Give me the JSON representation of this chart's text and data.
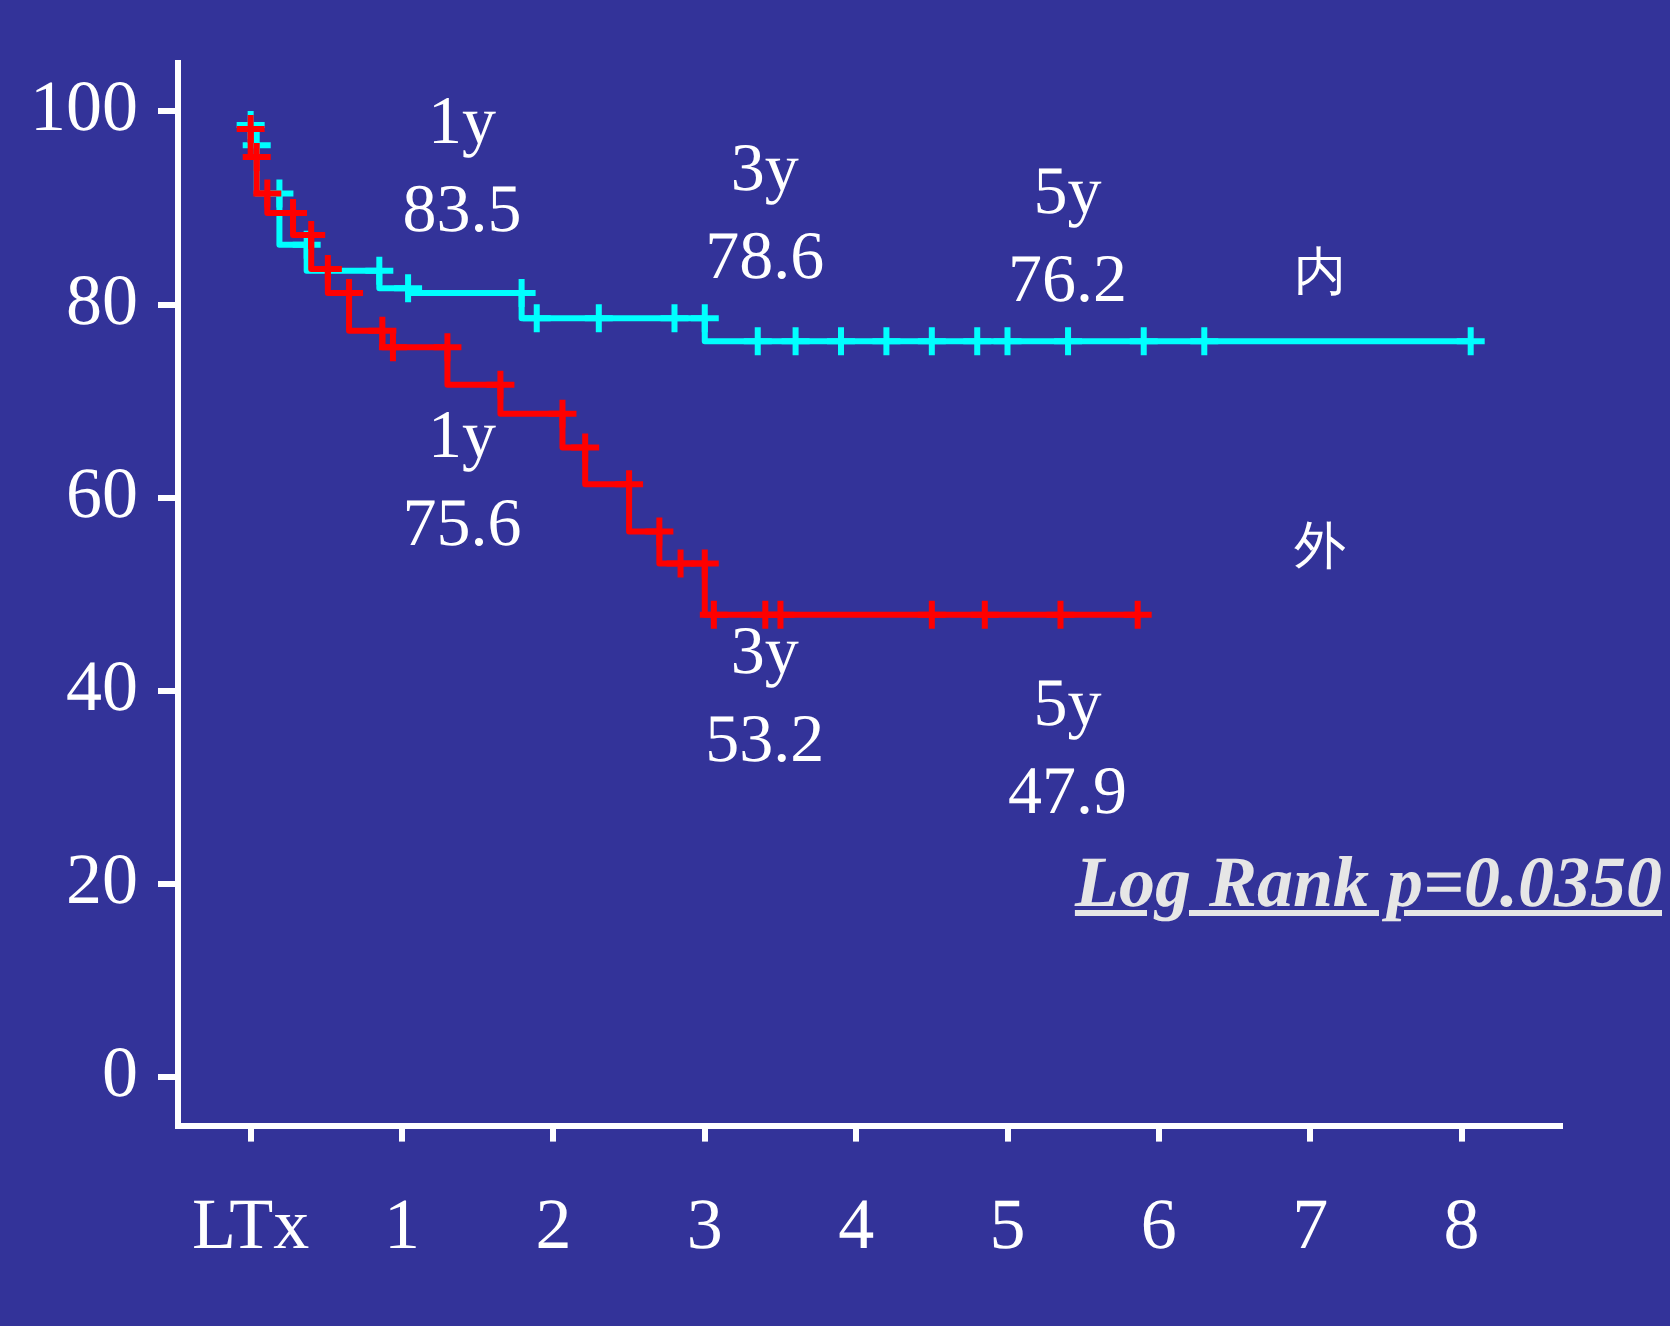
{
  "chart_data": {
    "type": "step",
    "series": [
      {
        "name": "内",
        "color": "#00ffff",
        "x": [
          0,
          0.04,
          0.19,
          0.37,
          0.85,
          1.04,
          1.79,
          1.89,
          2.3,
          2.8,
          3,
          3.35,
          3.6,
          3.9,
          4.2,
          4.5,
          4.8,
          5.0,
          5.4,
          5.9,
          6.3,
          8.06
        ],
        "values": [
          98.6,
          96.5,
          91.5,
          86.2,
          83.5,
          81.7,
          81.2,
          78.6,
          78.6,
          78.6,
          78.6,
          76.2,
          76.2,
          76.2,
          76.2,
          76.2,
          76.2,
          76.2,
          76.2,
          76.2,
          76.2,
          76.2
        ]
      },
      {
        "name": "外",
        "color": "#ff0000",
        "x": [
          0,
          0.04,
          0.11,
          0.28,
          0.4,
          0.51,
          0.65,
          0.87,
          0.94,
          1.3,
          1.65,
          2.06,
          2.21,
          2.5,
          2.7,
          2.84,
          3,
          3.06,
          3.4,
          3.5,
          4.5,
          4.85,
          5.35,
          5.86
        ],
        "values": [
          98.2,
          95.3,
          91.5,
          89.5,
          87.2,
          83.7,
          81.2,
          77.3,
          75.6,
          75.6,
          71.7,
          68.7,
          65.2,
          61.4,
          56.5,
          53.2,
          53.2,
          47.9,
          47.9,
          47.9,
          47.9,
          47.9,
          47.9,
          47.9
        ]
      }
    ],
    "xlim": [
      -0.48,
      8.65
    ],
    "xticks": [
      {
        "value": 0,
        "label": "LTx"
      },
      1,
      2,
      3,
      4,
      5,
      6,
      7,
      8
    ],
    "ylim": [
      -5,
      105
    ],
    "yticks": [
      0,
      20,
      40,
      60,
      80,
      100
    ],
    "grid": false,
    "legend": false,
    "marker": "cross",
    "line_style": "solid",
    "annotations": [
      {
        "text": "1y\n83.5",
        "x": 1,
        "y": 83.5
      },
      {
        "text": "3y\n78.6",
        "x": 3,
        "y": 78.6
      },
      {
        "text": "5y\n76.2",
        "x": 5,
        "y": 76.2
      },
      {
        "text": "1y\n75.6",
        "x": 1,
        "y": 75.6
      },
      {
        "text": "3y\n53.2",
        "x": 3,
        "y": 53.2
      },
      {
        "text": "5y\n47.9",
        "x": 5,
        "y": 47.9
      },
      "Log Rank p=0.0350"
    ]
  }
}
